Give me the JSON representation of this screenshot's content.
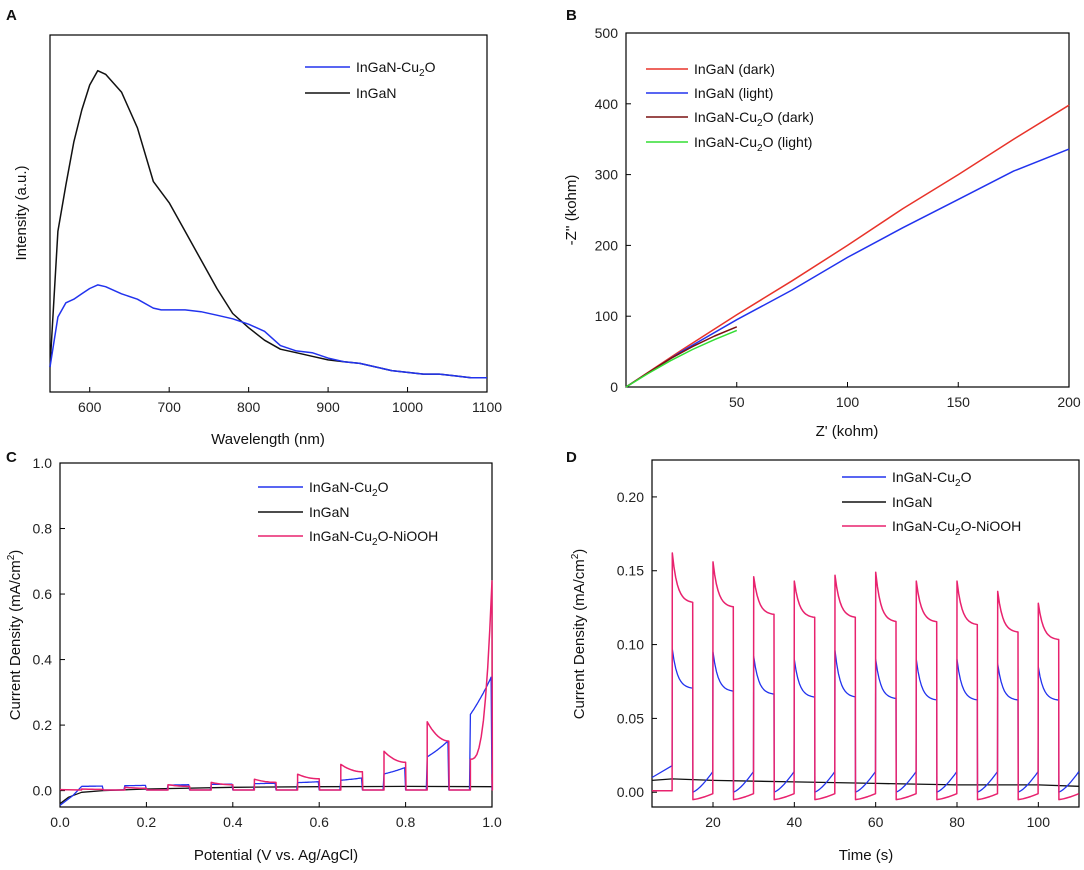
{
  "colors": {
    "blue": "#2233ee",
    "black": "#111111",
    "red": "#e8332a",
    "maroon": "#7a1010",
    "green": "#33dd33",
    "pink": "#e8226e"
  },
  "chart_data": [
    {
      "panel": "A",
      "type": "line",
      "xlabel": "Wavelength (nm)",
      "ylabel": "Intensity (a.u.)",
      "xlim": [
        550,
        1100
      ],
      "ylim": [
        0,
        1
      ],
      "xticks": [
        600,
        700,
        800,
        900,
        1000,
        1100
      ],
      "yticks": [],
      "legend_position": "top-right",
      "series": [
        {
          "name": "InGaN-Cu2O",
          "color": "blue",
          "x": [
            550,
            560,
            570,
            580,
            590,
            600,
            610,
            620,
            640,
            660,
            680,
            690,
            700,
            720,
            740,
            760,
            780,
            800,
            820,
            840,
            860,
            880,
            900,
            920,
            940,
            960,
            980,
            1000,
            1020,
            1040,
            1060,
            1080,
            1100
          ],
          "y": [
            0.07,
            0.21,
            0.25,
            0.26,
            0.275,
            0.29,
            0.3,
            0.295,
            0.275,
            0.26,
            0.235,
            0.23,
            0.23,
            0.23,
            0.225,
            0.215,
            0.205,
            0.19,
            0.17,
            0.13,
            0.115,
            0.11,
            0.095,
            0.085,
            0.08,
            0.07,
            0.06,
            0.055,
            0.05,
            0.05,
            0.045,
            0.04,
            0.04
          ]
        },
        {
          "name": "InGaN",
          "color": "black",
          "x": [
            550,
            560,
            570,
            580,
            590,
            600,
            610,
            620,
            640,
            660,
            680,
            700,
            720,
            740,
            760,
            780,
            800,
            820,
            840,
            860,
            880,
            900,
            920,
            940,
            960,
            980,
            1000,
            1020,
            1040,
            1060,
            1080,
            1100
          ],
          "y": [
            0.07,
            0.45,
            0.58,
            0.7,
            0.79,
            0.86,
            0.9,
            0.89,
            0.84,
            0.74,
            0.59,
            0.53,
            0.45,
            0.37,
            0.29,
            0.22,
            0.18,
            0.145,
            0.12,
            0.11,
            0.1,
            0.09,
            0.085,
            0.08,
            0.07,
            0.06,
            0.055,
            0.05,
            0.05,
            0.045,
            0.04,
            0.04
          ]
        }
      ]
    },
    {
      "panel": "B",
      "type": "line",
      "xlabel": "Z' (kohm)",
      "ylabel": "-Z'' (kohm)",
      "xlim": [
        0,
        200
      ],
      "ylim": [
        0,
        500
      ],
      "xticks": [
        50,
        100,
        150,
        200
      ],
      "yticks": [
        0,
        100,
        200,
        300,
        400,
        500
      ],
      "legend_position": "top-left",
      "series": [
        {
          "name": "InGaN (dark)",
          "color": "red",
          "x": [
            0,
            25,
            50,
            75,
            100,
            125,
            150,
            175,
            200
          ],
          "y": [
            0,
            52,
            102,
            150,
            200,
            252,
            300,
            350,
            398
          ]
        },
        {
          "name": "InGaN (light)",
          "color": "blue",
          "x": [
            0,
            25,
            50,
            75,
            100,
            125,
            150,
            175,
            200
          ],
          "y": [
            0,
            50,
            95,
            137,
            183,
            225,
            265,
            305,
            336
          ]
        },
        {
          "name": "InGaN-Cu2O (dark)",
          "color": "maroon",
          "x": [
            0,
            10,
            20,
            30,
            40,
            50
          ],
          "y": [
            0,
            20,
            40,
            57,
            72,
            85
          ]
        },
        {
          "name": "InGaN-Cu2O (light)",
          "color": "green",
          "x": [
            0,
            10,
            20,
            30,
            40,
            50
          ],
          "y": [
            0,
            19,
            37,
            53,
            67,
            80
          ]
        }
      ]
    },
    {
      "panel": "C",
      "type": "line",
      "xlabel": "Potential (V vs. Ag/AgCl)",
      "ylabel": "Current Density (mA/cm²)",
      "xlim": [
        0.0,
        1.0
      ],
      "ylim": [
        -0.05,
        1.0
      ],
      "xticks": [
        0.0,
        0.2,
        0.4,
        0.6,
        0.8,
        1.0
      ],
      "yticks": [
        0.0,
        0.2,
        0.4,
        0.6,
        0.8,
        1.0
      ],
      "legend_position": "top-right",
      "series": [
        {
          "name": "InGaN-Cu2O",
          "color": "blue",
          "pulse_start": 0.05,
          "pulse_step": 0.1,
          "pulse_on_width": 0.05
        },
        {
          "name": "InGaN",
          "color": "black",
          "x": [
            0.0,
            0.02,
            0.05,
            0.1,
            0.2,
            0.4,
            0.6,
            0.8,
            1.0
          ],
          "y": [
            -0.04,
            -0.02,
            -0.005,
            0.0,
            0.005,
            0.01,
            0.012,
            0.013,
            0.012
          ]
        },
        {
          "name": "InGaN-Cu2O-NiOOH",
          "color": "pink",
          "pulse_start": 0.05,
          "pulse_step": 0.1,
          "pulse_on_width": 0.05,
          "peaks": [
            0.005,
            0.01,
            0.018,
            0.025,
            0.035,
            0.05,
            0.08,
            0.12,
            0.21,
            0.64
          ]
        }
      ]
    },
    {
      "panel": "D",
      "type": "line",
      "xlabel": "Time (s)",
      "ylabel": "Current Density (mA/cm²)",
      "xlim": [
        5,
        110
      ],
      "ylim": [
        -0.01,
        0.225
      ],
      "xticks": [
        20,
        40,
        60,
        80,
        100
      ],
      "yticks": [
        0.0,
        0.05,
        0.1,
        0.15,
        0.2
      ],
      "legend_position": "top-right",
      "series": [
        {
          "name": "InGaN-Cu2O",
          "color": "blue",
          "on_times": [
            10,
            20,
            30,
            40,
            50,
            60,
            70,
            80,
            90,
            100
          ],
          "on_duration": 5,
          "peaks": [
            0.097,
            0.095,
            0.092,
            0.09,
            0.096,
            0.09,
            0.09,
            0.09,
            0.087,
            0.085
          ],
          "plateau": [
            0.07,
            0.068,
            0.066,
            0.064,
            0.064,
            0.063,
            0.062,
            0.062,
            0.062,
            0.062
          ]
        },
        {
          "name": "InGaN",
          "color": "black",
          "x": [
            5,
            10,
            20,
            40,
            60,
            80,
            100,
            110
          ],
          "y": [
            0.008,
            0.009,
            0.008,
            0.007,
            0.006,
            0.005,
            0.005,
            0.004
          ]
        },
        {
          "name": "InGaN-Cu2O-NiOOH",
          "color": "pink",
          "on_times": [
            10,
            20,
            30,
            40,
            50,
            60,
            70,
            80,
            90,
            100
          ],
          "on_duration": 5,
          "peaks": [
            0.162,
            0.156,
            0.146,
            0.143,
            0.147,
            0.149,
            0.143,
            0.143,
            0.136,
            0.128
          ],
          "plateau": [
            0.128,
            0.125,
            0.12,
            0.118,
            0.118,
            0.115,
            0.115,
            0.113,
            0.108,
            0.103
          ]
        }
      ]
    }
  ],
  "panels": {
    "A": "A",
    "B": "B",
    "C": "C",
    "D": "D"
  }
}
